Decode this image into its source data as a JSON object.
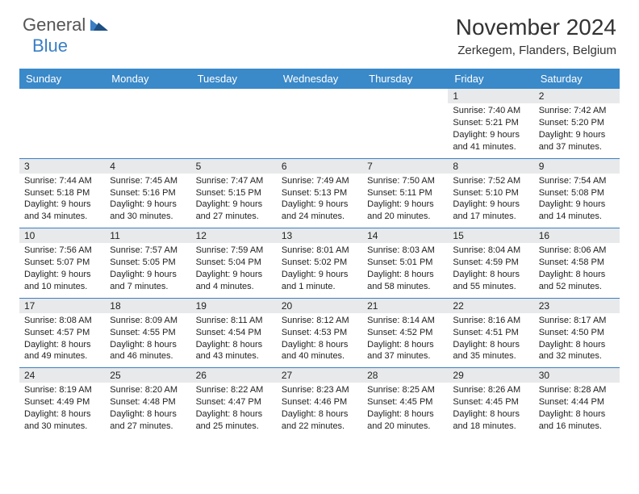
{
  "logo": {
    "text1": "General",
    "text2": "Blue"
  },
  "title": "November 2024",
  "location": "Zerkegem, Flanders, Belgium",
  "colors": {
    "header_bar": "#3a89c9",
    "week_divider": "#3a7fc4",
    "daynum_bg": "#e8e9ea",
    "text": "#222222",
    "logo_gray": "#555555",
    "logo_blue": "#3a7fc4"
  },
  "dayNames": [
    "Sunday",
    "Monday",
    "Tuesday",
    "Wednesday",
    "Thursday",
    "Friday",
    "Saturday"
  ],
  "firstWeekday": 5,
  "daysInMonth": 30,
  "days": {
    "1": {
      "sunrise": "7:40 AM",
      "sunset": "5:21 PM",
      "daylight": "9 hours and 41 minutes."
    },
    "2": {
      "sunrise": "7:42 AM",
      "sunset": "5:20 PM",
      "daylight": "9 hours and 37 minutes."
    },
    "3": {
      "sunrise": "7:44 AM",
      "sunset": "5:18 PM",
      "daylight": "9 hours and 34 minutes."
    },
    "4": {
      "sunrise": "7:45 AM",
      "sunset": "5:16 PM",
      "daylight": "9 hours and 30 minutes."
    },
    "5": {
      "sunrise": "7:47 AM",
      "sunset": "5:15 PM",
      "daylight": "9 hours and 27 minutes."
    },
    "6": {
      "sunrise": "7:49 AM",
      "sunset": "5:13 PM",
      "daylight": "9 hours and 24 minutes."
    },
    "7": {
      "sunrise": "7:50 AM",
      "sunset": "5:11 PM",
      "daylight": "9 hours and 20 minutes."
    },
    "8": {
      "sunrise": "7:52 AM",
      "sunset": "5:10 PM",
      "daylight": "9 hours and 17 minutes."
    },
    "9": {
      "sunrise": "7:54 AM",
      "sunset": "5:08 PM",
      "daylight": "9 hours and 14 minutes."
    },
    "10": {
      "sunrise": "7:56 AM",
      "sunset": "5:07 PM",
      "daylight": "9 hours and 10 minutes."
    },
    "11": {
      "sunrise": "7:57 AM",
      "sunset": "5:05 PM",
      "daylight": "9 hours and 7 minutes."
    },
    "12": {
      "sunrise": "7:59 AM",
      "sunset": "5:04 PM",
      "daylight": "9 hours and 4 minutes."
    },
    "13": {
      "sunrise": "8:01 AM",
      "sunset": "5:02 PM",
      "daylight": "9 hours and 1 minute."
    },
    "14": {
      "sunrise": "8:03 AM",
      "sunset": "5:01 PM",
      "daylight": "8 hours and 58 minutes."
    },
    "15": {
      "sunrise": "8:04 AM",
      "sunset": "4:59 PM",
      "daylight": "8 hours and 55 minutes."
    },
    "16": {
      "sunrise": "8:06 AM",
      "sunset": "4:58 PM",
      "daylight": "8 hours and 52 minutes."
    },
    "17": {
      "sunrise": "8:08 AM",
      "sunset": "4:57 PM",
      "daylight": "8 hours and 49 minutes."
    },
    "18": {
      "sunrise": "8:09 AM",
      "sunset": "4:55 PM",
      "daylight": "8 hours and 46 minutes."
    },
    "19": {
      "sunrise": "8:11 AM",
      "sunset": "4:54 PM",
      "daylight": "8 hours and 43 minutes."
    },
    "20": {
      "sunrise": "8:12 AM",
      "sunset": "4:53 PM",
      "daylight": "8 hours and 40 minutes."
    },
    "21": {
      "sunrise": "8:14 AM",
      "sunset": "4:52 PM",
      "daylight": "8 hours and 37 minutes."
    },
    "22": {
      "sunrise": "8:16 AM",
      "sunset": "4:51 PM",
      "daylight": "8 hours and 35 minutes."
    },
    "23": {
      "sunrise": "8:17 AM",
      "sunset": "4:50 PM",
      "daylight": "8 hours and 32 minutes."
    },
    "24": {
      "sunrise": "8:19 AM",
      "sunset": "4:49 PM",
      "daylight": "8 hours and 30 minutes."
    },
    "25": {
      "sunrise": "8:20 AM",
      "sunset": "4:48 PM",
      "daylight": "8 hours and 27 minutes."
    },
    "26": {
      "sunrise": "8:22 AM",
      "sunset": "4:47 PM",
      "daylight": "8 hours and 25 minutes."
    },
    "27": {
      "sunrise": "8:23 AM",
      "sunset": "4:46 PM",
      "daylight": "8 hours and 22 minutes."
    },
    "28": {
      "sunrise": "8:25 AM",
      "sunset": "4:45 PM",
      "daylight": "8 hours and 20 minutes."
    },
    "29": {
      "sunrise": "8:26 AM",
      "sunset": "4:45 PM",
      "daylight": "8 hours and 18 minutes."
    },
    "30": {
      "sunrise": "8:28 AM",
      "sunset": "4:44 PM",
      "daylight": "8 hours and 16 minutes."
    }
  },
  "labels": {
    "sunrise": "Sunrise:",
    "sunset": "Sunset:",
    "daylight": "Daylight:"
  }
}
